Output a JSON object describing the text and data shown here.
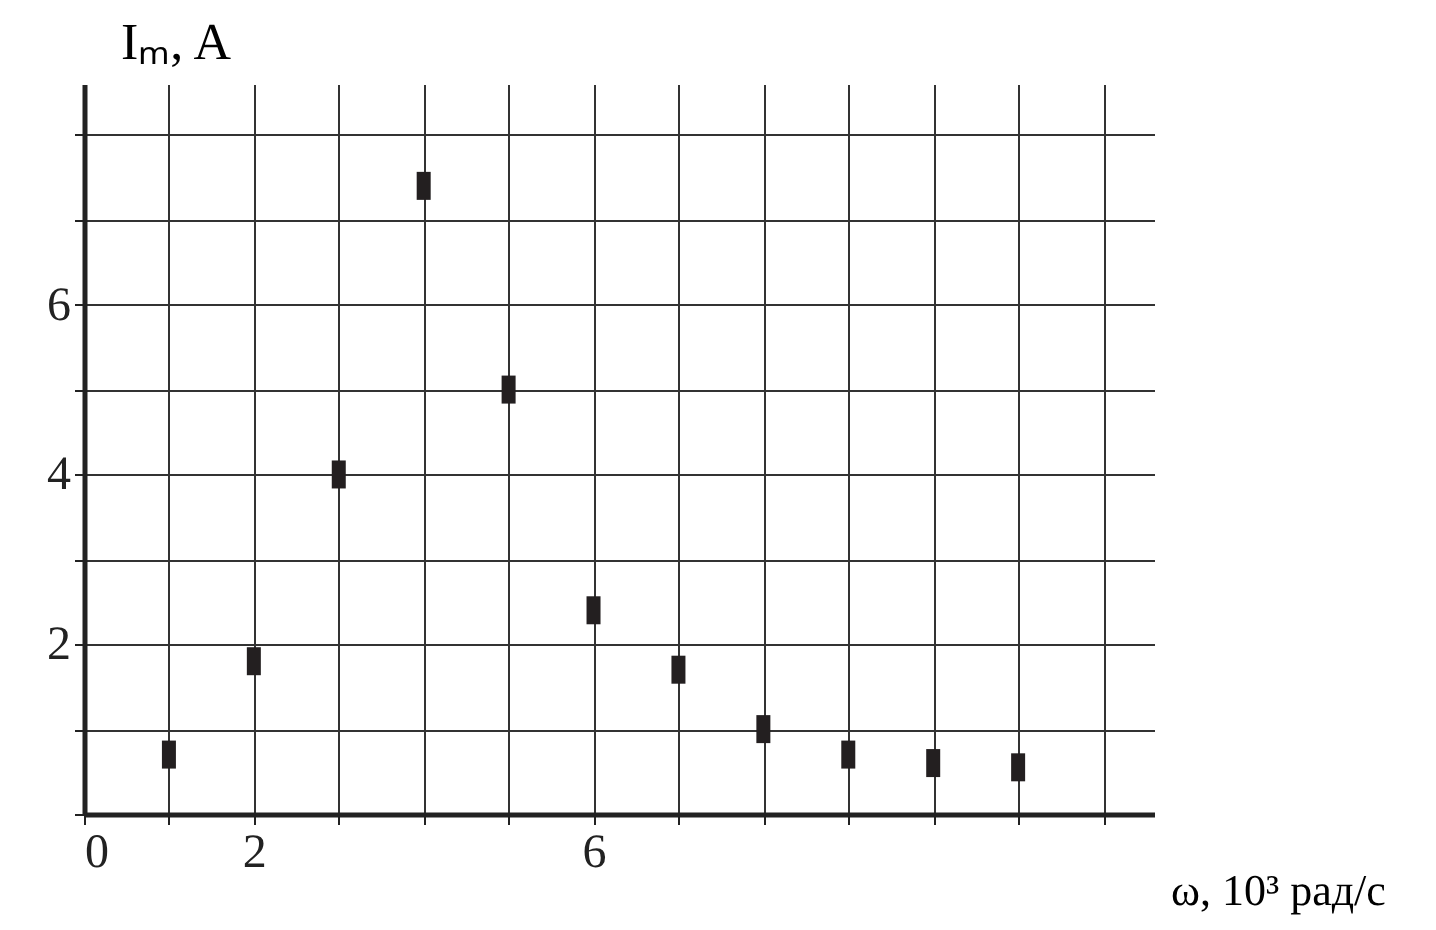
{
  "chart_data": {
    "type": "scatter",
    "xlabel": "ω, 10³ рад/с",
    "ylabel": "Iₘ, A",
    "x": [
      1,
      2,
      3,
      4,
      5,
      6,
      7,
      8,
      9,
      10,
      11
    ],
    "series": [
      {
        "color": "#231f20",
        "values": [
          0.7,
          1.8,
          4.0,
          7.4,
          5.0,
          2.4,
          1.7,
          1.0,
          0.7,
          0.6,
          0.55
        ]
      }
    ],
    "xlim": [
      0,
      12.6
    ],
    "ylim": [
      0,
      8.6
    ],
    "xticks": [
      {
        "value": 0,
        "label": "0"
      },
      {
        "value": 1,
        "label": null
      },
      2,
      {
        "value": 3,
        "label": null
      },
      {
        "value": 4,
        "label": null
      },
      {
        "value": 5,
        "label": null
      },
      6,
      {
        "value": 7,
        "label": null
      },
      {
        "value": 8,
        "label": null
      },
      {
        "value": 9,
        "label": null
      },
      {
        "value": 10,
        "label": null
      },
      {
        "value": 11,
        "label": null
      },
      {
        "value": 12,
        "label": null
      }
    ],
    "yticks": [
      {
        "value": 0,
        "label": null
      },
      {
        "value": 1,
        "label": null
      },
      2,
      {
        "value": 3,
        "label": null
      },
      4,
      {
        "value": 5,
        "label": null
      },
      6,
      {
        "value": 7,
        "label": null
      },
      {
        "value": 8,
        "label": null
      }
    ],
    "grid": true,
    "marker": "square"
  }
}
